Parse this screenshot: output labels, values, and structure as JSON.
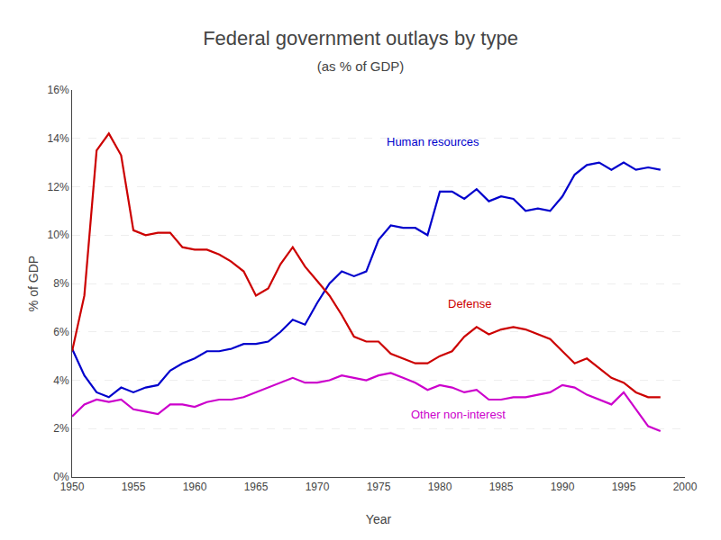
{
  "chart_data": {
    "type": "line",
    "title": "Federal government outlays by type",
    "subtitle": "(as % of GDP)",
    "xlabel": "Year",
    "ylabel": "% of GDP",
    "xlim": [
      1950,
      2000
    ],
    "ylim": [
      0,
      16
    ],
    "xticks": [
      1950,
      1955,
      1960,
      1965,
      1970,
      1975,
      1980,
      1985,
      1990,
      1995,
      2000
    ],
    "yticks": [
      {
        "value": 0,
        "label": "0%"
      },
      {
        "value": 2,
        "label": "2%"
      },
      {
        "value": 4,
        "label": "4%"
      },
      {
        "value": 6,
        "label": "6%"
      },
      {
        "value": 8,
        "label": "8%"
      },
      {
        "value": 10,
        "label": "10%"
      },
      {
        "value": 12,
        "label": "12%"
      },
      {
        "value": 14,
        "label": "14%"
      },
      {
        "value": 16,
        "label": "16%"
      }
    ],
    "grid": true,
    "x": [
      1950,
      1951,
      1952,
      1953,
      1954,
      1955,
      1956,
      1957,
      1958,
      1959,
      1960,
      1961,
      1962,
      1963,
      1964,
      1965,
      1966,
      1967,
      1968,
      1969,
      1970,
      1971,
      1972,
      1973,
      1974,
      1975,
      1976,
      1977,
      1978,
      1979,
      1980,
      1981,
      1982,
      1983,
      1984,
      1985,
      1986,
      1987,
      1988,
      1989,
      1990,
      1991,
      1992,
      1993,
      1994,
      1995,
      1996,
      1997,
      1998
    ],
    "series": [
      {
        "name": "Human resources",
        "color": "#0000CC",
        "values": [
          5.3,
          4.2,
          3.5,
          3.3,
          3.7,
          3.5,
          3.7,
          3.8,
          4.4,
          4.7,
          4.9,
          5.2,
          5.2,
          5.3,
          5.5,
          5.5,
          5.6,
          6.0,
          6.5,
          6.3,
          7.2,
          8.0,
          8.5,
          8.3,
          8.5,
          9.8,
          10.4,
          10.3,
          10.3,
          10.0,
          11.8,
          11.8,
          11.5,
          11.9,
          11.4,
          11.6,
          11.5,
          11.0,
          11.1,
          11.0,
          11.6,
          12.5,
          12.9,
          13.0,
          12.7,
          13.0,
          12.7,
          12.8,
          12.7
        ]
      },
      {
        "name": "Defense",
        "color": "#CC0000",
        "values": [
          5.2,
          7.5,
          13.5,
          14.2,
          13.3,
          10.2,
          10.0,
          10.1,
          10.1,
          9.5,
          9.4,
          9.4,
          9.2,
          8.9,
          8.5,
          7.5,
          7.8,
          8.8,
          9.5,
          8.7,
          8.1,
          7.5,
          6.7,
          5.8,
          5.6,
          5.6,
          5.1,
          4.9,
          4.7,
          4.7,
          5.0,
          5.2,
          5.8,
          6.2,
          5.9,
          6.1,
          6.2,
          6.1,
          5.9,
          5.7,
          5.2,
          4.7,
          4.9,
          4.5,
          4.1,
          3.9,
          3.5,
          3.3,
          3.3
        ]
      },
      {
        "name": "Other non-interest",
        "color": "#CC00CC",
        "values": [
          2.5,
          3.0,
          3.2,
          3.1,
          3.2,
          2.8,
          2.7,
          2.6,
          3.0,
          3.0,
          2.9,
          3.1,
          3.2,
          3.2,
          3.3,
          3.5,
          3.7,
          3.9,
          4.1,
          3.9,
          3.9,
          4.0,
          4.2,
          4.1,
          4.0,
          4.2,
          4.3,
          4.1,
          3.9,
          3.6,
          3.8,
          3.7,
          3.5,
          3.6,
          3.2,
          3.2,
          3.3,
          3.3,
          3.4,
          3.5,
          3.8,
          3.7,
          3.4,
          3.2,
          3.0,
          3.5,
          2.8,
          2.1,
          1.9
        ]
      }
    ],
    "annotations": [
      {
        "text": "Human resources",
        "x": 1975.5,
        "y": 13.5,
        "color": "#0000CC"
      },
      {
        "text": "Defense",
        "x": 1980.5,
        "y": 6.8,
        "color": "#CC0000"
      },
      {
        "text": "Other non-interest",
        "x": 1977.5,
        "y": 2.25,
        "color": "#CC00CC"
      }
    ]
  }
}
